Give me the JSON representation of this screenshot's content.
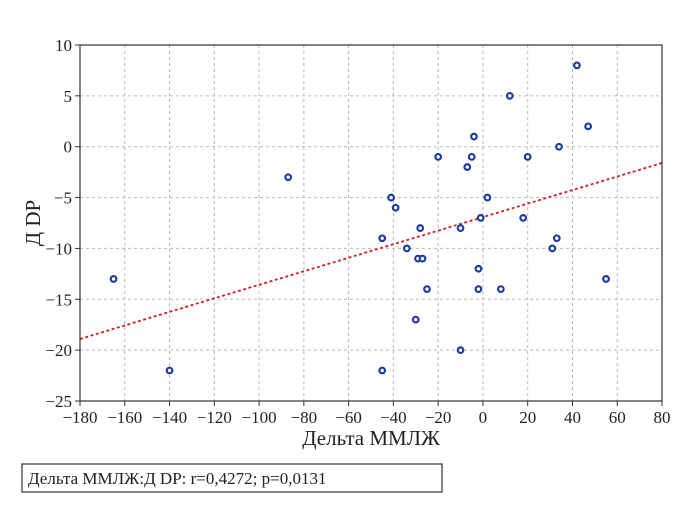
{
  "chart_data": {
    "type": "scatter",
    "xlabel": "Дельта ММЛЖ",
    "ylabel": "Д DP",
    "xlim": [
      -180,
      80
    ],
    "ylim": [
      -25,
      10
    ],
    "xticks": [
      -180,
      -160,
      -140,
      -120,
      -100,
      -80,
      -60,
      -40,
      -20,
      0,
      20,
      40,
      60,
      80
    ],
    "yticks": [
      -25,
      -20,
      -15,
      -10,
      -5,
      0,
      5,
      10
    ],
    "x_tick_labels": [
      "−180",
      "−160",
      "−140",
      "−120",
      "−100",
      "−80",
      "−60",
      "−40",
      "−20",
      "0",
      "20",
      "40",
      "60",
      "80"
    ],
    "y_tick_labels": [
      "−25",
      "−20",
      "−15",
      "−10",
      "−5",
      "0",
      "5",
      "10"
    ],
    "grid": true,
    "points": [
      {
        "x": -165,
        "y": -13
      },
      {
        "x": -140,
        "y": -22
      },
      {
        "x": -87,
        "y": -3
      },
      {
        "x": -45,
        "y": -9
      },
      {
        "x": -45,
        "y": -22
      },
      {
        "x": -41,
        "y": -5
      },
      {
        "x": -39,
        "y": -6
      },
      {
        "x": -34,
        "y": -10
      },
      {
        "x": -30,
        "y": -17
      },
      {
        "x": -29,
        "y": -11
      },
      {
        "x": -28,
        "y": -8
      },
      {
        "x": -27,
        "y": -11
      },
      {
        "x": -25,
        "y": -14
      },
      {
        "x": -20,
        "y": -1
      },
      {
        "x": -10,
        "y": -8
      },
      {
        "x": -10,
        "y": -20
      },
      {
        "x": -7,
        "y": -2
      },
      {
        "x": -5,
        "y": -1
      },
      {
        "x": -4,
        "y": 1
      },
      {
        "x": -2,
        "y": -12
      },
      {
        "x": -2,
        "y": -14
      },
      {
        "x": -1,
        "y": -7
      },
      {
        "x": 2,
        "y": -5
      },
      {
        "x": 8,
        "y": -14
      },
      {
        "x": 12,
        "y": 5
      },
      {
        "x": 18,
        "y": -7
      },
      {
        "x": 20,
        "y": -1
      },
      {
        "x": 31,
        "y": -10
      },
      {
        "x": 33,
        "y": -9
      },
      {
        "x": 34,
        "y": 0
      },
      {
        "x": 42,
        "y": 8
      },
      {
        "x": 47,
        "y": 2
      },
      {
        "x": 55,
        "y": -13
      }
    ],
    "fit_line": {
      "x": [
        -180,
        80
      ],
      "y": [
        -18.9,
        -1.6
      ]
    },
    "caption": "Дельта ММЛЖ:Д DP: r=0,4272; p=0,0131",
    "colors": {
      "points": "#1d3c9c",
      "fit_line": "#d12020"
    }
  }
}
